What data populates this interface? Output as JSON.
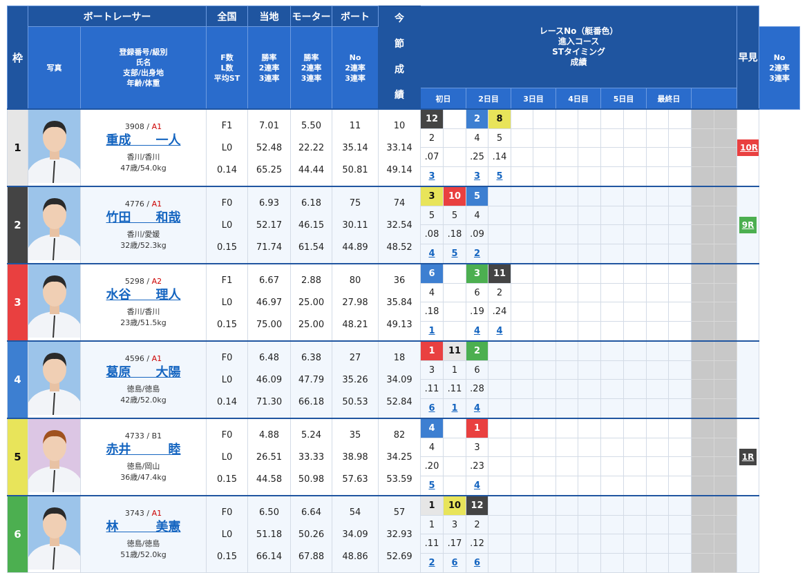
{
  "header": {
    "waku": "枠",
    "racer": "ボートレーサー",
    "zenkoku": "全国",
    "touchi": "当地",
    "motor": "モーター",
    "boat": "ボート",
    "photo": "写真",
    "info_lines": [
      "登録番号/級別",
      "氏名",
      "支部/出身地",
      "年齢/体重"
    ],
    "f_lines": [
      "F数",
      "L数",
      "平均ST"
    ],
    "zenkoku_lines": [
      "勝率",
      "2連率",
      "3連率"
    ],
    "touchi_lines": [
      "勝率",
      "2連率",
      "3連率"
    ],
    "motor_lines": [
      "No",
      "2連率",
      "3連率"
    ],
    "boat_lines": [
      "No",
      "2連率",
      "3連率"
    ],
    "results_lines": [
      "レースNo（艇番色）",
      "進入コース",
      "STタイミング",
      "成績"
    ],
    "days": [
      "初日",
      "2日目",
      "3日目",
      "4日目",
      "5日目",
      "最終日",
      ""
    ],
    "hayami": "早見",
    "konsetsu": [
      "今",
      "節",
      "成",
      "績"
    ]
  },
  "colors": {
    "1": "#e6e6e6",
    "2": "#444444",
    "3": "#e94040",
    "4": "#3d7fd1",
    "5": "#e8e45a",
    "6": "#4caf50"
  },
  "racers": [
    {
      "waku": "1",
      "reg": "3908",
      "cls": "A1",
      "name": "重成　　一人",
      "branch": "香川/香川",
      "age": "47歳/54.0kg",
      "f": "F1",
      "l": "L0",
      "st": "0.14",
      "zen": [
        "7.01",
        "52.48",
        "65.25"
      ],
      "tou": [
        "5.50",
        "22.22",
        "44.44"
      ],
      "mot": [
        "11",
        "35.14",
        "50.81"
      ],
      "boa": [
        "10",
        "33.14",
        "49.14"
      ],
      "res": [
        {
          "r": "12",
          "c": "2",
          "co": "2",
          "st": ".07",
          "rk": "3"
        },
        null,
        {
          "r": "2",
          "c": "4",
          "co": "4",
          "st": ".25",
          "rk": "3"
        },
        {
          "r": "8",
          "c": "5",
          "co": "5",
          "st": ".14",
          "rk": "5"
        }
      ],
      "hayami": "10R",
      "hayami_color": "3"
    },
    {
      "waku": "2",
      "reg": "4776",
      "cls": "A1",
      "name": "竹田　　和哉",
      "branch": "香川/愛媛",
      "age": "32歳/52.3kg",
      "f": "F0",
      "l": "L0",
      "st": "0.15",
      "zen": [
        "6.93",
        "52.17",
        "71.74"
      ],
      "tou": [
        "6.18",
        "46.15",
        "61.54"
      ],
      "mot": [
        "75",
        "30.11",
        "44.89"
      ],
      "boa": [
        "74",
        "32.54",
        "48.52"
      ],
      "res": [
        {
          "r": "3",
          "c": "5",
          "co": "5",
          "st": ".08",
          "rk": "4"
        },
        {
          "r": "10",
          "c": "3",
          "co": "5",
          "st": ".18",
          "rk": "5"
        },
        {
          "r": "5",
          "c": "4",
          "co": "4",
          "st": ".09",
          "rk": "2"
        }
      ],
      "hayami": "9R",
      "hayami_color": "6"
    },
    {
      "waku": "3",
      "reg": "5298",
      "cls": "A2",
      "name": "水谷　　理人",
      "branch": "香川/香川",
      "age": "23歳/51.5kg",
      "f": "F1",
      "l": "L0",
      "st": "0.15",
      "zen": [
        "6.67",
        "46.97",
        "75.00"
      ],
      "tou": [
        "2.88",
        "25.00",
        "25.00"
      ],
      "mot": [
        "80",
        "27.98",
        "48.21"
      ],
      "boa": [
        "36",
        "35.84",
        "49.13"
      ],
      "res": [
        {
          "r": "6",
          "c": "4",
          "co": "4",
          "st": ".18",
          "rk": "1"
        },
        null,
        {
          "r": "3",
          "c": "6",
          "co": "6",
          "st": ".19",
          "rk": "4"
        },
        {
          "r": "11",
          "c": "2",
          "co": "2",
          "st": ".24",
          "rk": "4"
        }
      ],
      "hayami": "",
      "hayami_color": ""
    },
    {
      "waku": "4",
      "reg": "4596",
      "cls": "A1",
      "name": "葛原　　大陽",
      "branch": "徳島/徳島",
      "age": "42歳/52.0kg",
      "f": "F0",
      "l": "L0",
      "st": "0.14",
      "zen": [
        "6.48",
        "46.09",
        "71.30"
      ],
      "tou": [
        "6.38",
        "47.79",
        "66.18"
      ],
      "mot": [
        "27",
        "35.26",
        "50.53"
      ],
      "boa": [
        "18",
        "34.09",
        "52.84"
      ],
      "res": [
        {
          "r": "1",
          "c": "3",
          "co": "3",
          "st": ".11",
          "rk": "6"
        },
        {
          "r": "11",
          "c": "1",
          "co": "1",
          "st": ".11",
          "rk": "1"
        },
        {
          "r": "2",
          "c": "6",
          "co": "6",
          "st": ".28",
          "rk": "4"
        }
      ],
      "hayami": "",
      "hayami_color": ""
    },
    {
      "waku": "5",
      "reg": "4733",
      "cls": "B1",
      "name": "赤井　　　睦",
      "branch": "徳島/岡山",
      "age": "36歳/47.4kg",
      "f": "F0",
      "l": "L0",
      "st": "0.15",
      "zen": [
        "4.88",
        "26.51",
        "44.58"
      ],
      "tou": [
        "5.24",
        "33.33",
        "50.98"
      ],
      "mot": [
        "35",
        "38.98",
        "57.63"
      ],
      "boa": [
        "82",
        "34.25",
        "53.59"
      ],
      "res": [
        {
          "r": "4",
          "c": "4",
          "co": "4",
          "st": ".20",
          "rk": "5"
        },
        null,
        {
          "r": "1",
          "c": "3",
          "co": "3",
          "st": ".23",
          "rk": "4"
        }
      ],
      "hayami": "1R",
      "hayami_color": "2"
    },
    {
      "waku": "6",
      "reg": "3743",
      "cls": "A1",
      "name": "林　　　美憲",
      "branch": "徳島/徳島",
      "age": "51歳/52.0kg",
      "f": "F0",
      "l": "L0",
      "st": "0.15",
      "zen": [
        "6.50",
        "51.18",
        "66.14"
      ],
      "tou": [
        "6.64",
        "50.26",
        "67.88"
      ],
      "mot": [
        "54",
        "34.09",
        "48.86"
      ],
      "boa": [
        "57",
        "32.93",
        "52.69"
      ],
      "res": [
        {
          "r": "1",
          "c": "1",
          "co": "1",
          "st": ".11",
          "rk": "2"
        },
        {
          "r": "10",
          "c": "5",
          "co": "3",
          "st": ".17",
          "rk": "6"
        },
        {
          "r": "12",
          "c": "2",
          "co": "2",
          "st": ".12",
          "rk": "6"
        }
      ],
      "hayami": "",
      "hayami_color": ""
    }
  ]
}
